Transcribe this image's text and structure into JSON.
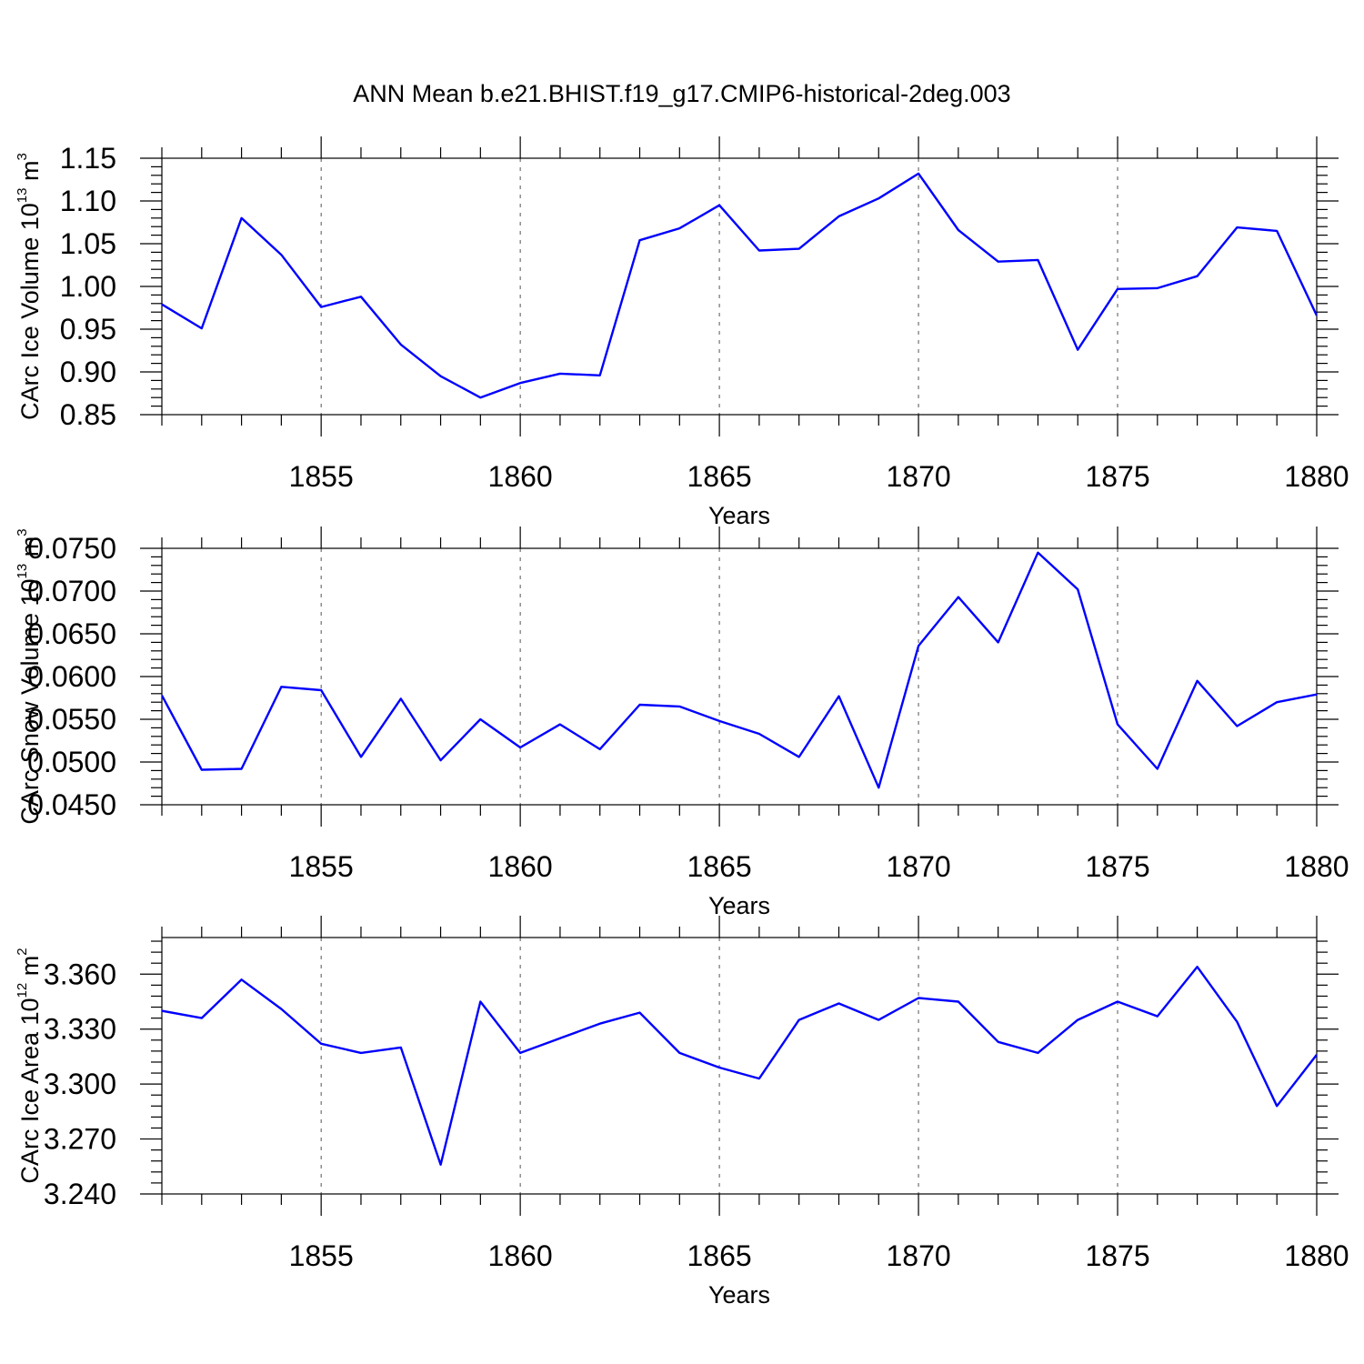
{
  "title": "ANN Mean b.e21.BHIST.f19_g17.CMIP6-historical-2deg.003",
  "line_color": "#0000ff",
  "chart_data": [
    {
      "type": "line",
      "title": "",
      "xlabel": "Years",
      "ylabel": {
        "main": "CArc Ice Volume 10",
        "exp": "13",
        "unit": " m",
        "unit_exp": "3"
      },
      "xlim": [
        1851,
        1880
      ],
      "ylim": [
        0.85,
        1.15
      ],
      "xticks": [
        1855,
        1860,
        1865,
        1870,
        1875,
        1880
      ],
      "yticks": [
        0.85,
        0.9,
        0.95,
        1.0,
        1.05,
        1.1,
        1.15
      ],
      "ytick_labels": [
        "0.85",
        "0.90",
        "0.95",
        "1.00",
        "1.05",
        "1.10",
        "1.15"
      ],
      "x": [
        1851,
        1852,
        1853,
        1854,
        1855,
        1856,
        1857,
        1858,
        1859,
        1860,
        1861,
        1862,
        1863,
        1864,
        1865,
        1866,
        1867,
        1868,
        1869,
        1870,
        1871,
        1872,
        1873,
        1874,
        1875,
        1876,
        1877,
        1878,
        1879,
        1880
      ],
      "values": [
        0.979,
        0.951,
        1.08,
        1.037,
        0.976,
        0.988,
        0.932,
        0.895,
        0.87,
        0.887,
        0.898,
        0.896,
        1.054,
        1.068,
        1.095,
        1.042,
        1.044,
        1.082,
        1.103,
        1.132,
        1.066,
        1.029,
        1.031,
        0.926,
        0.997,
        0.998,
        1.012,
        1.069,
        1.065,
        0.966
      ]
    },
    {
      "type": "line",
      "title": "",
      "xlabel": "Years",
      "ylabel": {
        "main": "CArc Snow Volume 10",
        "exp": "13",
        "unit": " m",
        "unit_exp": "3"
      },
      "xlim": [
        1851,
        1880
      ],
      "ylim": [
        0.045,
        0.075
      ],
      "xticks": [
        1855,
        1860,
        1865,
        1870,
        1875,
        1880
      ],
      "yticks": [
        0.045,
        0.05,
        0.055,
        0.06,
        0.065,
        0.07,
        0.075
      ],
      "ytick_labels": [
        "0.0450",
        "0.0500",
        "0.0550",
        "0.0600",
        "0.0650",
        "0.0700",
        "0.0750"
      ],
      "x": [
        1851,
        1852,
        1853,
        1854,
        1855,
        1856,
        1857,
        1858,
        1859,
        1860,
        1861,
        1862,
        1863,
        1864,
        1865,
        1866,
        1867,
        1868,
        1869,
        1870,
        1871,
        1872,
        1873,
        1874,
        1875,
        1876,
        1877,
        1878,
        1879,
        1880
      ],
      "values": [
        0.0578,
        0.0491,
        0.0492,
        0.0588,
        0.0584,
        0.0506,
        0.0574,
        0.0502,
        0.055,
        0.0517,
        0.0544,
        0.0515,
        0.0567,
        0.0565,
        0.0548,
        0.0533,
        0.0506,
        0.0577,
        0.047,
        0.0636,
        0.0693,
        0.064,
        0.0745,
        0.0702,
        0.0544,
        0.0492,
        0.0595,
        0.0542,
        0.057,
        0.0579
      ]
    },
    {
      "type": "line",
      "title": "",
      "xlabel": "Years",
      "ylabel": {
        "main": "CArc Ice Area 10",
        "exp": "12",
        "unit": " m",
        "unit_exp": "2"
      },
      "xlim": [
        1851,
        1880
      ],
      "ylim": [
        3.24,
        3.38
      ],
      "xticks": [
        1855,
        1860,
        1865,
        1870,
        1875,
        1880
      ],
      "yticks": [
        3.24,
        3.27,
        3.3,
        3.33,
        3.36
      ],
      "ytick_labels": [
        "3.240",
        "3.270",
        "3.300",
        "3.330",
        "3.360"
      ],
      "x": [
        1851,
        1852,
        1853,
        1854,
        1855,
        1856,
        1857,
        1858,
        1859,
        1860,
        1861,
        1862,
        1863,
        1864,
        1865,
        1866,
        1867,
        1868,
        1869,
        1870,
        1871,
        1872,
        1873,
        1874,
        1875,
        1876,
        1877,
        1878,
        1879,
        1880
      ],
      "values": [
        3.34,
        3.336,
        3.357,
        3.341,
        3.322,
        3.317,
        3.32,
        3.256,
        3.345,
        3.317,
        3.325,
        3.333,
        3.339,
        3.317,
        3.309,
        3.303,
        3.335,
        3.344,
        3.335,
        3.347,
        3.345,
        3.323,
        3.317,
        3.335,
        3.345,
        3.337,
        3.364,
        3.334,
        3.288,
        3.316
      ]
    }
  ]
}
